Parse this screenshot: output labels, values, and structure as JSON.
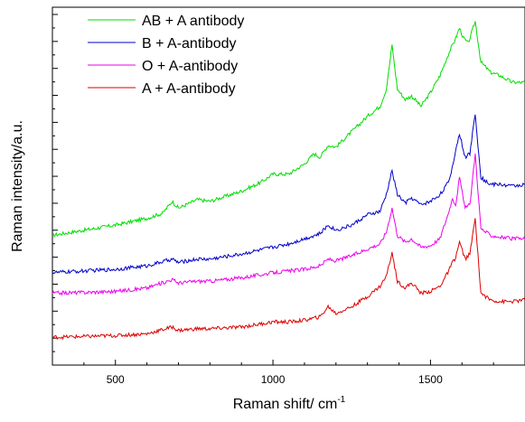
{
  "chart_data": {
    "type": "line",
    "xlabel": "Raman shift/ cm",
    "xlabel_sup": "-1",
    "ylabel": "Raman intensity/a.u.",
    "xlim": [
      300,
      1800
    ],
    "ylim": [
      0,
      100
    ],
    "x_ticks": [
      500,
      1000,
      1500
    ],
    "y_tick_labels": "none",
    "legend": "top-left",
    "series": [
      {
        "name": "AB + A antibody",
        "color": "#00dd00",
        "x": [
          300,
          400,
          500,
          600,
          650,
          680,
          700,
          760,
          800,
          900,
          960,
          1000,
          1050,
          1100,
          1130,
          1150,
          1175,
          1200,
          1250,
          1300,
          1340,
          1360,
          1378,
          1395,
          1420,
          1440,
          1470,
          1500,
          1530,
          1560,
          1580,
          1592,
          1605,
          1620,
          1642,
          1660,
          1690,
          1720,
          1760,
          1800
        ],
        "values": [
          35,
          36.5,
          38,
          40,
          41.5,
          45,
          43,
          45.5,
          45,
          48,
          50.5,
          53,
          53,
          56,
          59,
          58,
          61.5,
          61,
          65.5,
          70,
          73,
          78,
          91,
          78,
          75,
          76,
          73,
          77,
          82,
          89,
          93,
          96,
          93,
          91.5,
          98,
          86,
          83,
          82,
          80,
          80
        ]
      },
      {
        "name": "B + A-antibody",
        "color": "#0000cc",
        "x": [
          300,
          400,
          500,
          600,
          680,
          700,
          760,
          800,
          900,
          1000,
          1050,
          1100,
          1150,
          1175,
          1200,
          1250,
          1300,
          1340,
          1360,
          1378,
          1395,
          1420,
          1440,
          1470,
          1500,
          1530,
          1560,
          1580,
          1592,
          1610,
          1625,
          1642,
          1660,
          1690,
          1720,
          1760,
          1800
        ],
        "values": [
          24,
          24.5,
          25,
          26,
          28,
          27,
          28,
          28,
          29.5,
          31.5,
          32.5,
          34,
          35.5,
          38,
          36.5,
          38,
          41,
          42,
          47,
          54,
          47,
          44.5,
          46,
          44,
          45,
          47,
          51,
          60,
          65,
          58,
          59,
          71,
          52,
          50,
          50,
          49.5,
          50
        ]
      },
      {
        "name": "O + A-antibody",
        "color": "#ee00ee",
        "x": [
          300,
          400,
          500,
          600,
          680,
          700,
          760,
          800,
          900,
          1000,
          1050,
          1100,
          1150,
          1175,
          1200,
          1250,
          1300,
          1340,
          1360,
          1378,
          1395,
          1420,
          1440,
          1470,
          1500,
          1530,
          1555,
          1570,
          1580,
          1592,
          1610,
          1625,
          1642,
          1660,
          1690,
          1720,
          1760,
          1800
        ],
        "values": [
          18,
          18.2,
          18.5,
          19.5,
          22,
          21,
          21.5,
          21.5,
          22.5,
          24,
          24.5,
          25,
          26,
          28,
          27.5,
          29,
          31,
          32.5,
          36,
          43,
          35,
          33,
          34,
          31.5,
          32,
          34,
          41,
          46,
          44,
          52,
          43,
          44,
          59,
          37,
          35,
          34.5,
          34,
          34
        ]
      },
      {
        "name": "A + A-antibody",
        "color": "#dd0000",
        "x": [
          300,
          400,
          500,
          600,
          680,
          700,
          760,
          800,
          900,
          1000,
          1050,
          1100,
          1150,
          1175,
          1200,
          1250,
          1300,
          1340,
          1360,
          1378,
          1395,
          1420,
          1440,
          1470,
          1500,
          1530,
          1555,
          1570,
          1580,
          1592,
          1610,
          1625,
          1642,
          1660,
          1690,
          1720,
          1760,
          1800
        ],
        "values": [
          5,
          5.2,
          5.5,
          6,
          8,
          7,
          7.5,
          7.5,
          8,
          9.5,
          9.5,
          10,
          11,
          14,
          12,
          14,
          17,
          20,
          23,
          30,
          21.5,
          19.5,
          21,
          18,
          18.5,
          20,
          24,
          27,
          28.5,
          33,
          28,
          29.5,
          40,
          18,
          16,
          15.5,
          15.5,
          16
        ]
      }
    ]
  }
}
